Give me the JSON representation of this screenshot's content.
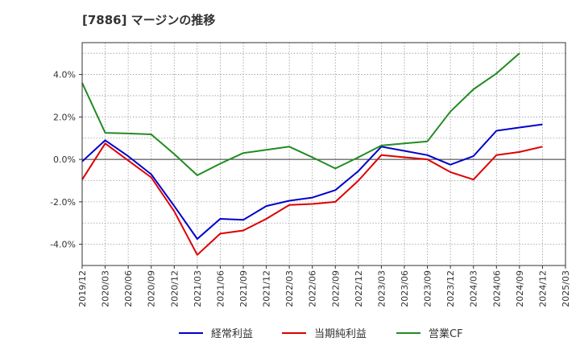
{
  "chart_data": {
    "type": "line",
    "title": "[7886]  マージンの推移",
    "xlabel": "",
    "ylabel": "",
    "x": [
      "2019/12",
      "2020/03",
      "2020/06",
      "2020/09",
      "2020/12",
      "2021/03",
      "2021/06",
      "2021/09",
      "2021/12",
      "2022/03",
      "2022/06",
      "2022/09",
      "2022/12",
      "2023/03",
      "2023/06",
      "2023/09",
      "2023/12",
      "2024/03",
      "2024/06",
      "2024/09",
      "2024/12",
      "2025/03"
    ],
    "y_ticks": [
      4.0,
      2.0,
      0.0,
      -2.0,
      -4.0
    ],
    "y_tick_labels": [
      "4.0%",
      "2.0%",
      "0.0%",
      "-2.0%",
      "-4.0%"
    ],
    "ylim": [
      -5.0,
      5.5
    ],
    "grid": true,
    "legend_position": "bottom",
    "series": [
      {
        "name": "経常利益",
        "color": "#0000cc",
        "values": [
          -0.1,
          0.9,
          0.15,
          -0.7,
          -2.2,
          -3.75,
          -2.8,
          -2.85,
          -2.2,
          -1.95,
          -1.8,
          -1.45,
          -0.55,
          0.6,
          0.4,
          0.2,
          -0.25,
          0.15,
          1.35,
          1.5,
          1.65,
          null
        ]
      },
      {
        "name": "当期純利益",
        "color": "#dd0000",
        "values": [
          -0.95,
          0.75,
          -0.05,
          -0.85,
          -2.45,
          -4.5,
          -3.5,
          -3.35,
          -2.8,
          -2.15,
          -2.1,
          -2.0,
          -1.0,
          0.2,
          0.1,
          0.0,
          -0.6,
          -0.95,
          0.2,
          0.35,
          0.6,
          null
        ]
      },
      {
        "name": "営業CF",
        "color": "#228b22",
        "values": [
          3.6,
          1.25,
          1.22,
          1.18,
          0.25,
          -0.75,
          -0.2,
          0.3,
          0.45,
          0.6,
          0.1,
          -0.43,
          0.1,
          0.65,
          0.75,
          0.85,
          2.25,
          3.3,
          4.05,
          5.0,
          null,
          null
        ]
      }
    ]
  }
}
